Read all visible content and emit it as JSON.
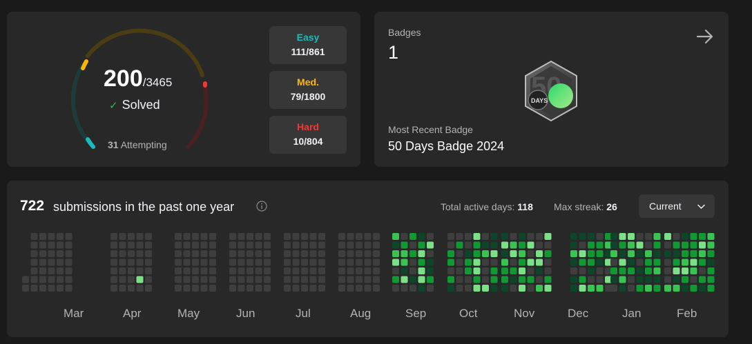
{
  "solved": {
    "count": "200",
    "total": "/3465",
    "label": "Solved",
    "attempting_count": "31",
    "attempting_label": "Attempting",
    "difficulties": [
      {
        "name": "Easy",
        "value": "111/861",
        "color": "#1cbaba"
      },
      {
        "name": "Med.",
        "value": "79/1800",
        "color": "#ffb700"
      },
      {
        "name": "Hard",
        "value": "10/804",
        "color": "#f63737"
      }
    ],
    "progress": {
      "easy": 0.129,
      "medium": 0.044,
      "hard": 0.012
    }
  },
  "badges": {
    "label": "Badges",
    "count": "1",
    "recent_label": "Most Recent Badge",
    "recent_name": "50 Days Badge 2024",
    "badge_text": "DAYS",
    "badge_digit": "50"
  },
  "calendar": {
    "submissions": "722",
    "submissions_label": "submissions in the past one year",
    "active_days_label": "Total active days:",
    "active_days": "118",
    "max_streak_label": "Max streak:",
    "max_streak": "26",
    "dropdown_value": "Current",
    "months": [
      "Mar",
      "Apr",
      "May",
      "Jun",
      "Jul",
      "Aug",
      "Sep",
      "Oct",
      "Nov",
      "Dec",
      "Jan",
      "Feb"
    ],
    "colors": {
      "empty": "#3e3e3e",
      "l1": "#0e4429",
      "l2": "#109932",
      "l3": "#39c353",
      "l4": "#7be087"
    }
  }
}
